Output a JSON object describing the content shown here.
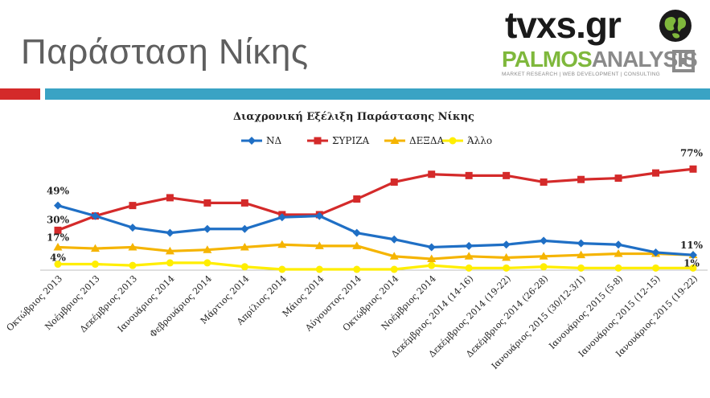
{
  "slide": {
    "title": "Παράσταση Νίκης",
    "logo_tvxs": "tvxs.gr",
    "logo_palmos_a": "PALMOS",
    "logo_palmos_b": "ANALYSIS",
    "logo_tagline": "MARKET RESEARCH | WEB DEVELOPMENT | CONSULTING"
  },
  "colors": {
    "title_bar_red": "#d42a2a",
    "title_bar_blue": "#3aa3c4",
    "logo_green": "#7fb83c",
    "logo_gray": "#8a8a8a"
  },
  "chart_data": {
    "type": "line",
    "title": "Διαχρονική Εξέλιξη Παράστασης Νίκης",
    "legend_position": "top",
    "grid": false,
    "ylim": [
      0,
      100
    ],
    "categories": [
      "Οκτώβριος 2013",
      "Νοέμβριος 2013",
      "Δεκέμβριος 2013",
      "Ιανουάριος 2014",
      "Φεβρουάριος 2014",
      "Μάρτιος 2014",
      "Απρίλιος 2014",
      "Μάιος 2014",
      "Αύγουστος 2014",
      "Οκτώβριος 2014",
      "Νοέμβριος 2014",
      "Δεκέμβριος 2014 (14-16)",
      "Δεκέμβριος 2014 (19-22)",
      "Δεκέμβριος 2014 (26-28)",
      "Ιανουάριος 2015 (30/12-3/1)",
      "Ιανουάριος 2015 (5-8)",
      "Ιανουάριος 2015 (12-15)",
      "Ιανουάριος 2015 (19-22)"
    ],
    "series": [
      {
        "name": "ΝΔ",
        "color": "#1f6fc5",
        "marker": "diamond",
        "values": [
          49,
          41,
          32,
          28,
          31,
          31,
          40,
          41,
          28,
          23,
          17,
          18,
          19,
          22,
          20,
          19,
          13,
          11
        ]
      },
      {
        "name": "ΣΥΡΙΖΑ",
        "color": "#d42a2a",
        "marker": "square",
        "values": [
          30,
          41,
          49,
          55,
          51,
          51,
          42,
          42,
          54,
          67,
          73,
          72,
          72,
          67,
          69,
          70,
          74,
          77
        ]
      },
      {
        "name": "ΔΕΞΔΑ",
        "color": "#f5b400",
        "marker": "triangle",
        "values": [
          17,
          16,
          17,
          14,
          15,
          17,
          19,
          18,
          18,
          10,
          8,
          10,
          9,
          10,
          11,
          12,
          12,
          11
        ]
      },
      {
        "name": "Άλλο",
        "color": "#ffee00",
        "marker": "circle",
        "values": [
          4,
          4,
          3,
          5,
          5,
          2,
          0,
          0,
          0,
          0,
          3,
          1,
          1,
          2,
          1,
          1,
          1,
          1
        ]
      }
    ],
    "data_labels": [
      {
        "series": 0,
        "index": 0,
        "text": "49%"
      },
      {
        "series": 1,
        "index": 0,
        "text": "30%"
      },
      {
        "series": 2,
        "index": 0,
        "text": "17%"
      },
      {
        "series": 3,
        "index": 0,
        "text": "4%"
      },
      {
        "series": 1,
        "index": 17,
        "text": "77%"
      },
      {
        "series": 0,
        "index": 17,
        "text": "11%"
      },
      {
        "series": 3,
        "index": 17,
        "text": "1%"
      }
    ]
  }
}
